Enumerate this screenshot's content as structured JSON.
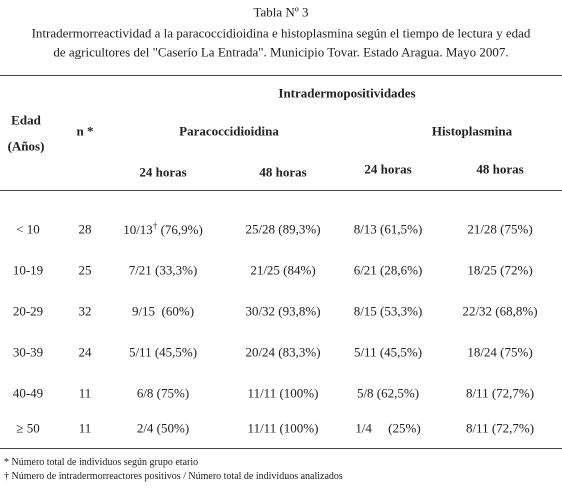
{
  "header": {
    "title": "Tabla Nº 3",
    "caption_lines": [
      "Intradermorreactividad a la paracoccidioidina e histoplasmina según el tiempo de lectura y edad",
      "de agricultores del \"Caserío La Entrada\". Municipio Tovar. Estado Aragua. Mayo 2007."
    ]
  },
  "table": {
    "group_header": "Intradermopositividades",
    "col_headers": {
      "age": [
        "Edad",
        "(Años)"
      ],
      "n": "n *",
      "paracoccidioidina": "Paracoccidioidina",
      "histoplasmina": "Histoplasmina"
    },
    "sub_headers": [
      "24 horas",
      "48 horas",
      "24 horas",
      "48 horas"
    ],
    "rows": [
      [
        "< 10",
        "28",
        {
          "text": "10/13",
          "sup": "†",
          "rest": " (76,9%)"
        },
        "25/28 (89,3%)",
        "8/13 (61,5%)",
        "21/28 (75%)"
      ],
      [
        "10-19",
        "25",
        "7/21 (33,3%)",
        "21/25 (84%)",
        "6/21 (28,6%)",
        "18/25 (72%)"
      ],
      [
        "20-29",
        "32",
        "9/15  (60%)",
        "30/32 (93,8%)",
        "8/15 (53,3%)",
        "22/32 (68,8%)"
      ],
      [
        "30-39",
        "24",
        "5/11 (45,5%)",
        "20/24 (83,3%)",
        "5/11 (45,5%)",
        "18/24 (75%)"
      ],
      [
        "40-49",
        "11",
        "6/8 (75%)",
        "11/11 (100%)",
        "5/8 (62,5%)",
        "8/11 (72,7%)"
      ],
      [
        "≥ 50",
        "11",
        "2/4 (50%)",
        "11/11 (100%)",
        "1/4     (25%)",
        "8/11 (72,7%)"
      ]
    ]
  },
  "footnotes": [
    "* Número total de individuos según grupo etario",
    "† Número de intradermorreactores positivos / Número total de individuos analizados"
  ]
}
